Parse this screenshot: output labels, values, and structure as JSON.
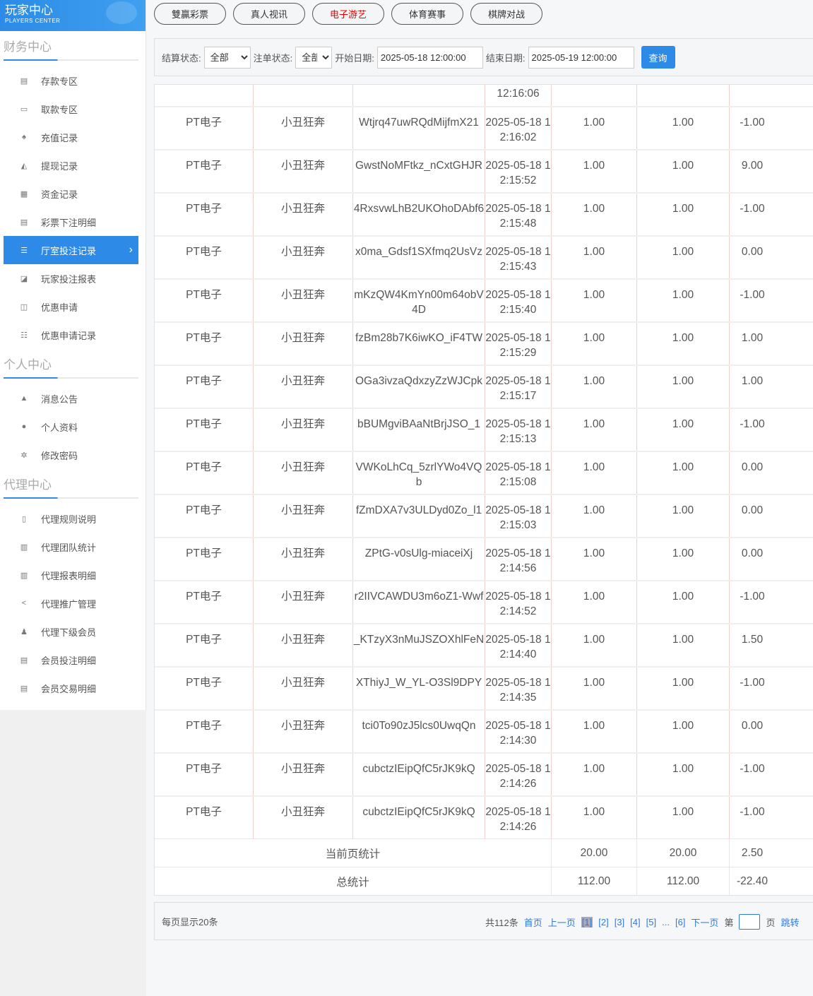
{
  "logo": {
    "title": "玩家中心",
    "subtitle": "PLAYERS CENTER"
  },
  "sidebar": {
    "sections": [
      {
        "title": "财务中心",
        "items": [
          {
            "icon": "calculator-icon",
            "glyph": "▤",
            "label": "存款专区"
          },
          {
            "icon": "card-icon",
            "glyph": "▭",
            "label": "取款专区"
          },
          {
            "icon": "money-bag-icon",
            "glyph": "♠",
            "label": "充值记录"
          },
          {
            "icon": "withdraw-icon",
            "glyph": "◭",
            "label": "提现记录"
          },
          {
            "icon": "funds-icon",
            "glyph": "▦",
            "label": "资金记录"
          },
          {
            "icon": "list-icon",
            "glyph": "▤",
            "label": "彩票下注明细"
          },
          {
            "icon": "list-bullet-icon",
            "glyph": "☰",
            "label": "厅室投注记录",
            "active": true
          },
          {
            "icon": "chart-icon",
            "glyph": "◪",
            "label": "玩家投注报表"
          },
          {
            "icon": "gift-icon",
            "glyph": "◫",
            "label": "优惠申请"
          },
          {
            "icon": "list-bullet-icon",
            "glyph": "☷",
            "label": "优惠申请记录"
          }
        ]
      },
      {
        "title": "个人中心",
        "items": [
          {
            "icon": "bell-icon",
            "glyph": "▲",
            "label": "消息公告"
          },
          {
            "icon": "user-icon",
            "glyph": "●",
            "label": "个人资料"
          },
          {
            "icon": "gear-icon",
            "glyph": "✲",
            "label": "修改密码"
          }
        ]
      },
      {
        "title": "代理中心",
        "items": [
          {
            "icon": "file-icon",
            "glyph": "▯",
            "label": "代理规则说明"
          },
          {
            "icon": "report-icon",
            "glyph": "▥",
            "label": "代理团队统计"
          },
          {
            "icon": "report-icon",
            "glyph": "▥",
            "label": "代理报表明细"
          },
          {
            "icon": "share-icon",
            "glyph": "<",
            "label": "代理推广管理"
          },
          {
            "icon": "users-icon",
            "glyph": "♟",
            "label": "代理下级会员"
          },
          {
            "icon": "document-icon",
            "glyph": "▤",
            "label": "会员投注明细"
          },
          {
            "icon": "document-icon",
            "glyph": "▤",
            "label": "会员交易明细"
          }
        ]
      }
    ]
  },
  "tabs": [
    {
      "label": "雙贏彩票"
    },
    {
      "label": "真人视讯"
    },
    {
      "label": "电子游艺",
      "active": true
    },
    {
      "label": "体育赛事"
    },
    {
      "label": "棋牌对战"
    }
  ],
  "filter": {
    "settle_label": "结算状态:",
    "settle_value": "全部",
    "order_label": "注单状态:",
    "order_value": "全部",
    "start_label": "开始日期:",
    "start_value": "2025-05-18 12:00:00",
    "end_label": "结束日期:",
    "end_value": "2025-05-19 12:00:00",
    "query": "查询"
  },
  "table": {
    "partial_row_time": "12:16:06",
    "rows": [
      [
        "PT电子",
        "小丑狂奔",
        "Wtjrq47uwRQdMijfmX21",
        "2025-05-18 12:16:02",
        "1.00",
        "1.00",
        "-1.00"
      ],
      [
        "PT电子",
        "小丑狂奔",
        "GwstNoMFtkz_nCxtGHJR",
        "2025-05-18 12:15:52",
        "1.00",
        "1.00",
        "9.00"
      ],
      [
        "PT电子",
        "小丑狂奔",
        "4RxsvwLhB2UKOhoDAbf6",
        "2025-05-18 12:15:48",
        "1.00",
        "1.00",
        "-1.00"
      ],
      [
        "PT电子",
        "小丑狂奔",
        "x0ma_Gdsf1SXfmq2UsVz",
        "2025-05-18 12:15:43",
        "1.00",
        "1.00",
        "0.00"
      ],
      [
        "PT电子",
        "小丑狂奔",
        "mKzQW4KmYn00m64obV4D",
        "2025-05-18 12:15:40",
        "1.00",
        "1.00",
        "-1.00"
      ],
      [
        "PT电子",
        "小丑狂奔",
        "fzBm28b7K6iwKO_iF4TW",
        "2025-05-18 12:15:29",
        "1.00",
        "1.00",
        "1.00"
      ],
      [
        "PT电子",
        "小丑狂奔",
        "OGa3ivzaQdxzyZzWJCpk",
        "2025-05-18 12:15:17",
        "1.00",
        "1.00",
        "1.00"
      ],
      [
        "PT电子",
        "小丑狂奔",
        "bBUMgviBAaNtBrjJSO_1",
        "2025-05-18 12:15:13",
        "1.00",
        "1.00",
        "-1.00"
      ],
      [
        "PT电子",
        "小丑狂奔",
        "VWKoLhCq_5zrlYWo4VQb",
        "2025-05-18 12:15:08",
        "1.00",
        "1.00",
        "0.00"
      ],
      [
        "PT电子",
        "小丑狂奔",
        "fZmDXA7v3ULDyd0Zo_l1",
        "2025-05-18 12:15:03",
        "1.00",
        "1.00",
        "0.00"
      ],
      [
        "PT电子",
        "小丑狂奔",
        "ZPtG-v0sUlg-miaceiXj",
        "2025-05-18 12:14:56",
        "1.00",
        "1.00",
        "0.00"
      ],
      [
        "PT电子",
        "小丑狂奔",
        "r2IIVCAWDU3m6oZ1-Wwf",
        "2025-05-18 12:14:52",
        "1.00",
        "1.00",
        "-1.00"
      ],
      [
        "PT电子",
        "小丑狂奔",
        "_KTzyX3nMuJSZOXhlFeN",
        "2025-05-18 12:14:40",
        "1.00",
        "1.00",
        "1.50"
      ],
      [
        "PT电子",
        "小丑狂奔",
        "XThiyJ_W_YL-O3Sl9DPY",
        "2025-05-18 12:14:35",
        "1.00",
        "1.00",
        "-1.00"
      ],
      [
        "PT电子",
        "小丑狂奔",
        "tci0To90zJ5lcs0UwqQn",
        "2025-05-18 12:14:30",
        "1.00",
        "1.00",
        "0.00"
      ],
      [
        "PT电子",
        "小丑狂奔",
        "cubctzIEipQfC5rJK9kQ",
        "2025-05-18 12:14:26",
        "1.00",
        "1.00",
        "-1.00"
      ],
      [
        "PT电子",
        "小丑狂奔",
        "cubctzIEipQfC5rJK9kQ",
        "2025-05-18 12:14:26",
        "1.00",
        "1.00",
        "-1.00"
      ]
    ],
    "page_total": {
      "label": "当前页统计",
      "bet": "20.00",
      "valid": "20.00",
      "win": "2.50"
    },
    "grand_total": {
      "label": "总统计",
      "bet": "112.00",
      "valid": "112.00",
      "win": "-22.40"
    }
  },
  "pager": {
    "per_page": "每页显示20条",
    "total": "共112条",
    "first": "首页",
    "prev": "上一页",
    "pages": [
      "[1]",
      "[2]",
      "[3]",
      "[4]",
      "[5]"
    ],
    "ellipsis": "...",
    "last_page": "[6]",
    "next": "下一页",
    "goto_prefix": "第",
    "goto_suffix": "页",
    "jump": "跳转"
  },
  "colors": {
    "accent": "#2d8ae6",
    "active_tab": "#ee0000"
  }
}
